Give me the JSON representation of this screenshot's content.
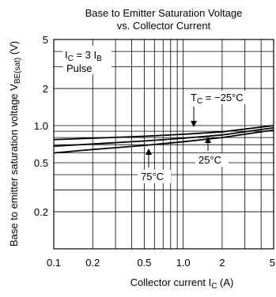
{
  "chart_data": {
    "type": "line",
    "title_line1": "Base to Emitter Saturation Voltage",
    "title_line2": "vs. Collector Current",
    "xlabel_main": "Collector current  I",
    "xlabel_sub": "C",
    "xlabel_unit": "  (A)",
    "ylabel_main": "Base to emitter saturation voltage  V",
    "ylabel_sub": "BE(sat)",
    "ylabel_unit": "  (V)",
    "x_scale": "log",
    "y_scale": "log",
    "xlim": [
      0.1,
      5
    ],
    "ylim": [
      0.1,
      5
    ],
    "x_ticks": [
      {
        "value": 0.1,
        "label": "0.1"
      },
      {
        "value": 0.2,
        "label": "0.2"
      },
      {
        "value": 0.5,
        "label": "0.5"
      },
      {
        "value": 1.0,
        "label": "1.0"
      },
      {
        "value": 2,
        "label": "2"
      },
      {
        "value": 5,
        "label": "5"
      }
    ],
    "y_ticks": [
      {
        "value": 0.2,
        "label": "0.2"
      },
      {
        "value": 0.5,
        "label": "0.5"
      },
      {
        "value": 1.0,
        "label": "1.0"
      },
      {
        "value": 2,
        "label": "2"
      },
      {
        "value": 5,
        "label": "5"
      }
    ],
    "grid": true,
    "condition": {
      "text_main": "I",
      "text_sub1": "C",
      "text_mid": " = 3 I",
      "text_sub2": "B",
      "line2": "Pulse"
    },
    "series": [
      {
        "label_main": "T",
        "label_sub": "C",
        "label_rest": " = −25°C",
        "x": [
          0.1,
          0.2,
          0.5,
          1.0,
          2.0,
          5.0
        ],
        "y": [
          0.77,
          0.79,
          0.82,
          0.85,
          0.89,
          1.0
        ]
      },
      {
        "label_main": "25°C",
        "x": [
          0.1,
          0.2,
          0.5,
          1.0,
          2.0,
          5.0
        ],
        "y": [
          0.68,
          0.71,
          0.75,
          0.79,
          0.84,
          0.96
        ]
      },
      {
        "label_main": "75°C",
        "x": [
          0.1,
          0.2,
          0.5,
          1.0,
          2.0,
          5.0
        ],
        "y": [
          0.6,
          0.64,
          0.69,
          0.74,
          0.8,
          0.92
        ]
      }
    ]
  }
}
